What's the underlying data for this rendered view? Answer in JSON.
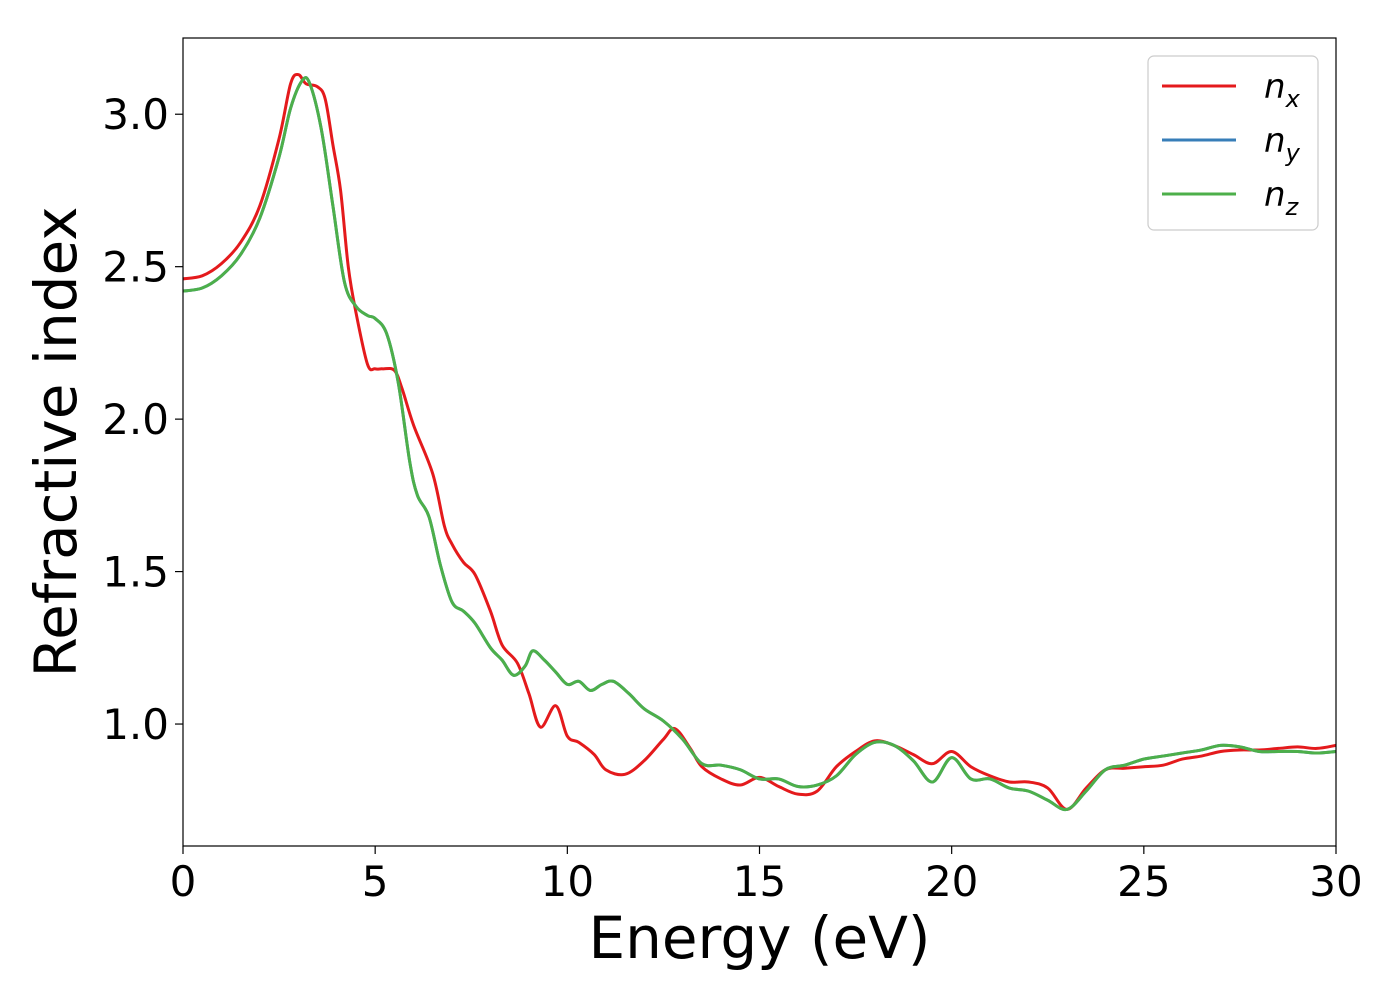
{
  "chart_data": {
    "type": "line",
    "title": "",
    "xlabel": "Energy (eV)",
    "ylabel": "Refractive index",
    "xlim": [
      0,
      30
    ],
    "ylim": [
      0.6,
      3.25
    ],
    "xticks": [
      0,
      5,
      10,
      15,
      20,
      25,
      30
    ],
    "yticks": [
      1.0,
      1.5,
      2.0,
      2.5,
      3.0
    ],
    "xtick_labels": [
      "0",
      "5",
      "10",
      "15",
      "20",
      "25",
      "30"
    ],
    "ytick_labels": [
      "1.0",
      "1.5",
      "2.0",
      "2.5",
      "3.0"
    ],
    "grid": false,
    "legend_position": "top-right",
    "series": [
      {
        "name": "n_x",
        "label_main": "n",
        "label_sub": "x",
        "color": "#e41a1c",
        "x": [
          0,
          0.5,
          1,
          1.5,
          2,
          2.5,
          2.8,
          3.0,
          3.2,
          3.5,
          3.7,
          3.9,
          4.1,
          4.3,
          4.5,
          4.8,
          5.0,
          5.2,
          5.5,
          5.7,
          6.0,
          6.5,
          6.8,
          7.0,
          7.3,
          7.6,
          8.0,
          8.3,
          8.7,
          9.0,
          9.3,
          9.7,
          10.0,
          10.3,
          10.7,
          11.0,
          11.5,
          12.0,
          12.5,
          12.8,
          13.2,
          13.5,
          14.0,
          14.5,
          15.0,
          15.5,
          16.0,
          16.5,
          17.0,
          17.5,
          18.0,
          18.5,
          19.0,
          19.5,
          20.0,
          20.5,
          21.0,
          21.5,
          22.0,
          22.5,
          23.0,
          23.5,
          24.0,
          24.5,
          25.0,
          25.5,
          26.0,
          26.5,
          27.0,
          27.5,
          28.0,
          28.5,
          29.0,
          29.5,
          30.0
        ],
        "y": [
          2.46,
          2.47,
          2.51,
          2.58,
          2.7,
          2.92,
          3.1,
          3.13,
          3.1,
          3.09,
          3.05,
          2.9,
          2.75,
          2.5,
          2.35,
          2.18,
          2.165,
          2.165,
          2.16,
          2.1,
          1.98,
          1.82,
          1.65,
          1.59,
          1.53,
          1.49,
          1.37,
          1.26,
          1.2,
          1.1,
          0.99,
          1.06,
          0.96,
          0.94,
          0.9,
          0.85,
          0.835,
          0.88,
          0.95,
          0.985,
          0.92,
          0.86,
          0.82,
          0.8,
          0.825,
          0.795,
          0.77,
          0.78,
          0.86,
          0.91,
          0.945,
          0.93,
          0.9,
          0.87,
          0.91,
          0.86,
          0.83,
          0.81,
          0.81,
          0.79,
          0.72,
          0.79,
          0.85,
          0.855,
          0.86,
          0.865,
          0.885,
          0.895,
          0.91,
          0.915,
          0.915,
          0.92,
          0.925,
          0.92,
          0.93
        ]
      },
      {
        "name": "n_y",
        "label_main": "n",
        "label_sub": "y",
        "color": "#377eb8",
        "x": [
          0,
          0.5,
          1,
          1.5,
          2,
          2.5,
          2.8,
          3.1,
          3.3,
          3.6,
          3.9,
          4.2,
          4.5,
          4.8,
          5.0,
          5.3,
          5.6,
          5.9,
          6.1,
          6.4,
          6.7,
          7.0,
          7.3,
          7.6,
          8.0,
          8.3,
          8.6,
          8.9,
          9.1,
          9.4,
          9.7,
          10.0,
          10.3,
          10.6,
          10.9,
          11.2,
          11.6,
          12.0,
          12.5,
          13.0,
          13.5,
          14.0,
          14.5,
          15.0,
          15.5,
          16.0,
          16.5,
          17.0,
          17.5,
          18.0,
          18.5,
          19.0,
          19.5,
          20.0,
          20.5,
          21.0,
          21.5,
          22.0,
          22.5,
          23.0,
          23.5,
          24.0,
          24.5,
          25.0,
          25.5,
          26.0,
          26.5,
          27.0,
          27.5,
          28.0,
          28.5,
          29.0,
          29.5,
          30.0
        ],
        "y": [
          2.42,
          2.43,
          2.47,
          2.54,
          2.66,
          2.86,
          3.02,
          3.11,
          3.1,
          2.95,
          2.7,
          2.45,
          2.37,
          2.34,
          2.33,
          2.28,
          2.12,
          1.86,
          1.75,
          1.68,
          1.52,
          1.4,
          1.37,
          1.33,
          1.25,
          1.21,
          1.16,
          1.19,
          1.24,
          1.21,
          1.17,
          1.13,
          1.14,
          1.11,
          1.13,
          1.14,
          1.1,
          1.05,
          1.01,
          0.95,
          0.87,
          0.865,
          0.85,
          0.82,
          0.82,
          0.795,
          0.8,
          0.83,
          0.9,
          0.94,
          0.93,
          0.88,
          0.81,
          0.89,
          0.82,
          0.82,
          0.79,
          0.78,
          0.75,
          0.72,
          0.78,
          0.85,
          0.865,
          0.885,
          0.895,
          0.905,
          0.915,
          0.93,
          0.925,
          0.91,
          0.91,
          0.91,
          0.905,
          0.91
        ]
      },
      {
        "name": "n_z",
        "label_main": "n",
        "label_sub": "z",
        "color": "#4daf4a",
        "x": [
          0,
          0.5,
          1,
          1.5,
          2,
          2.5,
          2.8,
          3.1,
          3.3,
          3.6,
          3.9,
          4.2,
          4.5,
          4.8,
          5.0,
          5.3,
          5.6,
          5.9,
          6.1,
          6.4,
          6.7,
          7.0,
          7.3,
          7.6,
          8.0,
          8.3,
          8.6,
          8.9,
          9.1,
          9.4,
          9.7,
          10.0,
          10.3,
          10.6,
          10.9,
          11.2,
          11.6,
          12.0,
          12.5,
          13.0,
          13.5,
          14.0,
          14.5,
          15.0,
          15.5,
          16.0,
          16.5,
          17.0,
          17.5,
          18.0,
          18.5,
          19.0,
          19.5,
          20.0,
          20.5,
          21.0,
          21.5,
          22.0,
          22.5,
          23.0,
          23.5,
          24.0,
          24.5,
          25.0,
          25.5,
          26.0,
          26.5,
          27.0,
          27.5,
          28.0,
          28.5,
          29.0,
          29.5,
          30.0
        ],
        "y": [
          2.42,
          2.43,
          2.47,
          2.54,
          2.66,
          2.86,
          3.02,
          3.11,
          3.1,
          2.95,
          2.7,
          2.45,
          2.37,
          2.34,
          2.33,
          2.28,
          2.12,
          1.86,
          1.75,
          1.68,
          1.52,
          1.4,
          1.37,
          1.33,
          1.25,
          1.21,
          1.16,
          1.19,
          1.24,
          1.21,
          1.17,
          1.13,
          1.14,
          1.11,
          1.13,
          1.14,
          1.1,
          1.05,
          1.01,
          0.95,
          0.87,
          0.865,
          0.85,
          0.82,
          0.82,
          0.795,
          0.8,
          0.83,
          0.9,
          0.94,
          0.93,
          0.88,
          0.81,
          0.89,
          0.82,
          0.82,
          0.79,
          0.78,
          0.75,
          0.72,
          0.78,
          0.85,
          0.865,
          0.885,
          0.895,
          0.905,
          0.915,
          0.93,
          0.925,
          0.91,
          0.91,
          0.91,
          0.905,
          0.91
        ]
      }
    ]
  }
}
